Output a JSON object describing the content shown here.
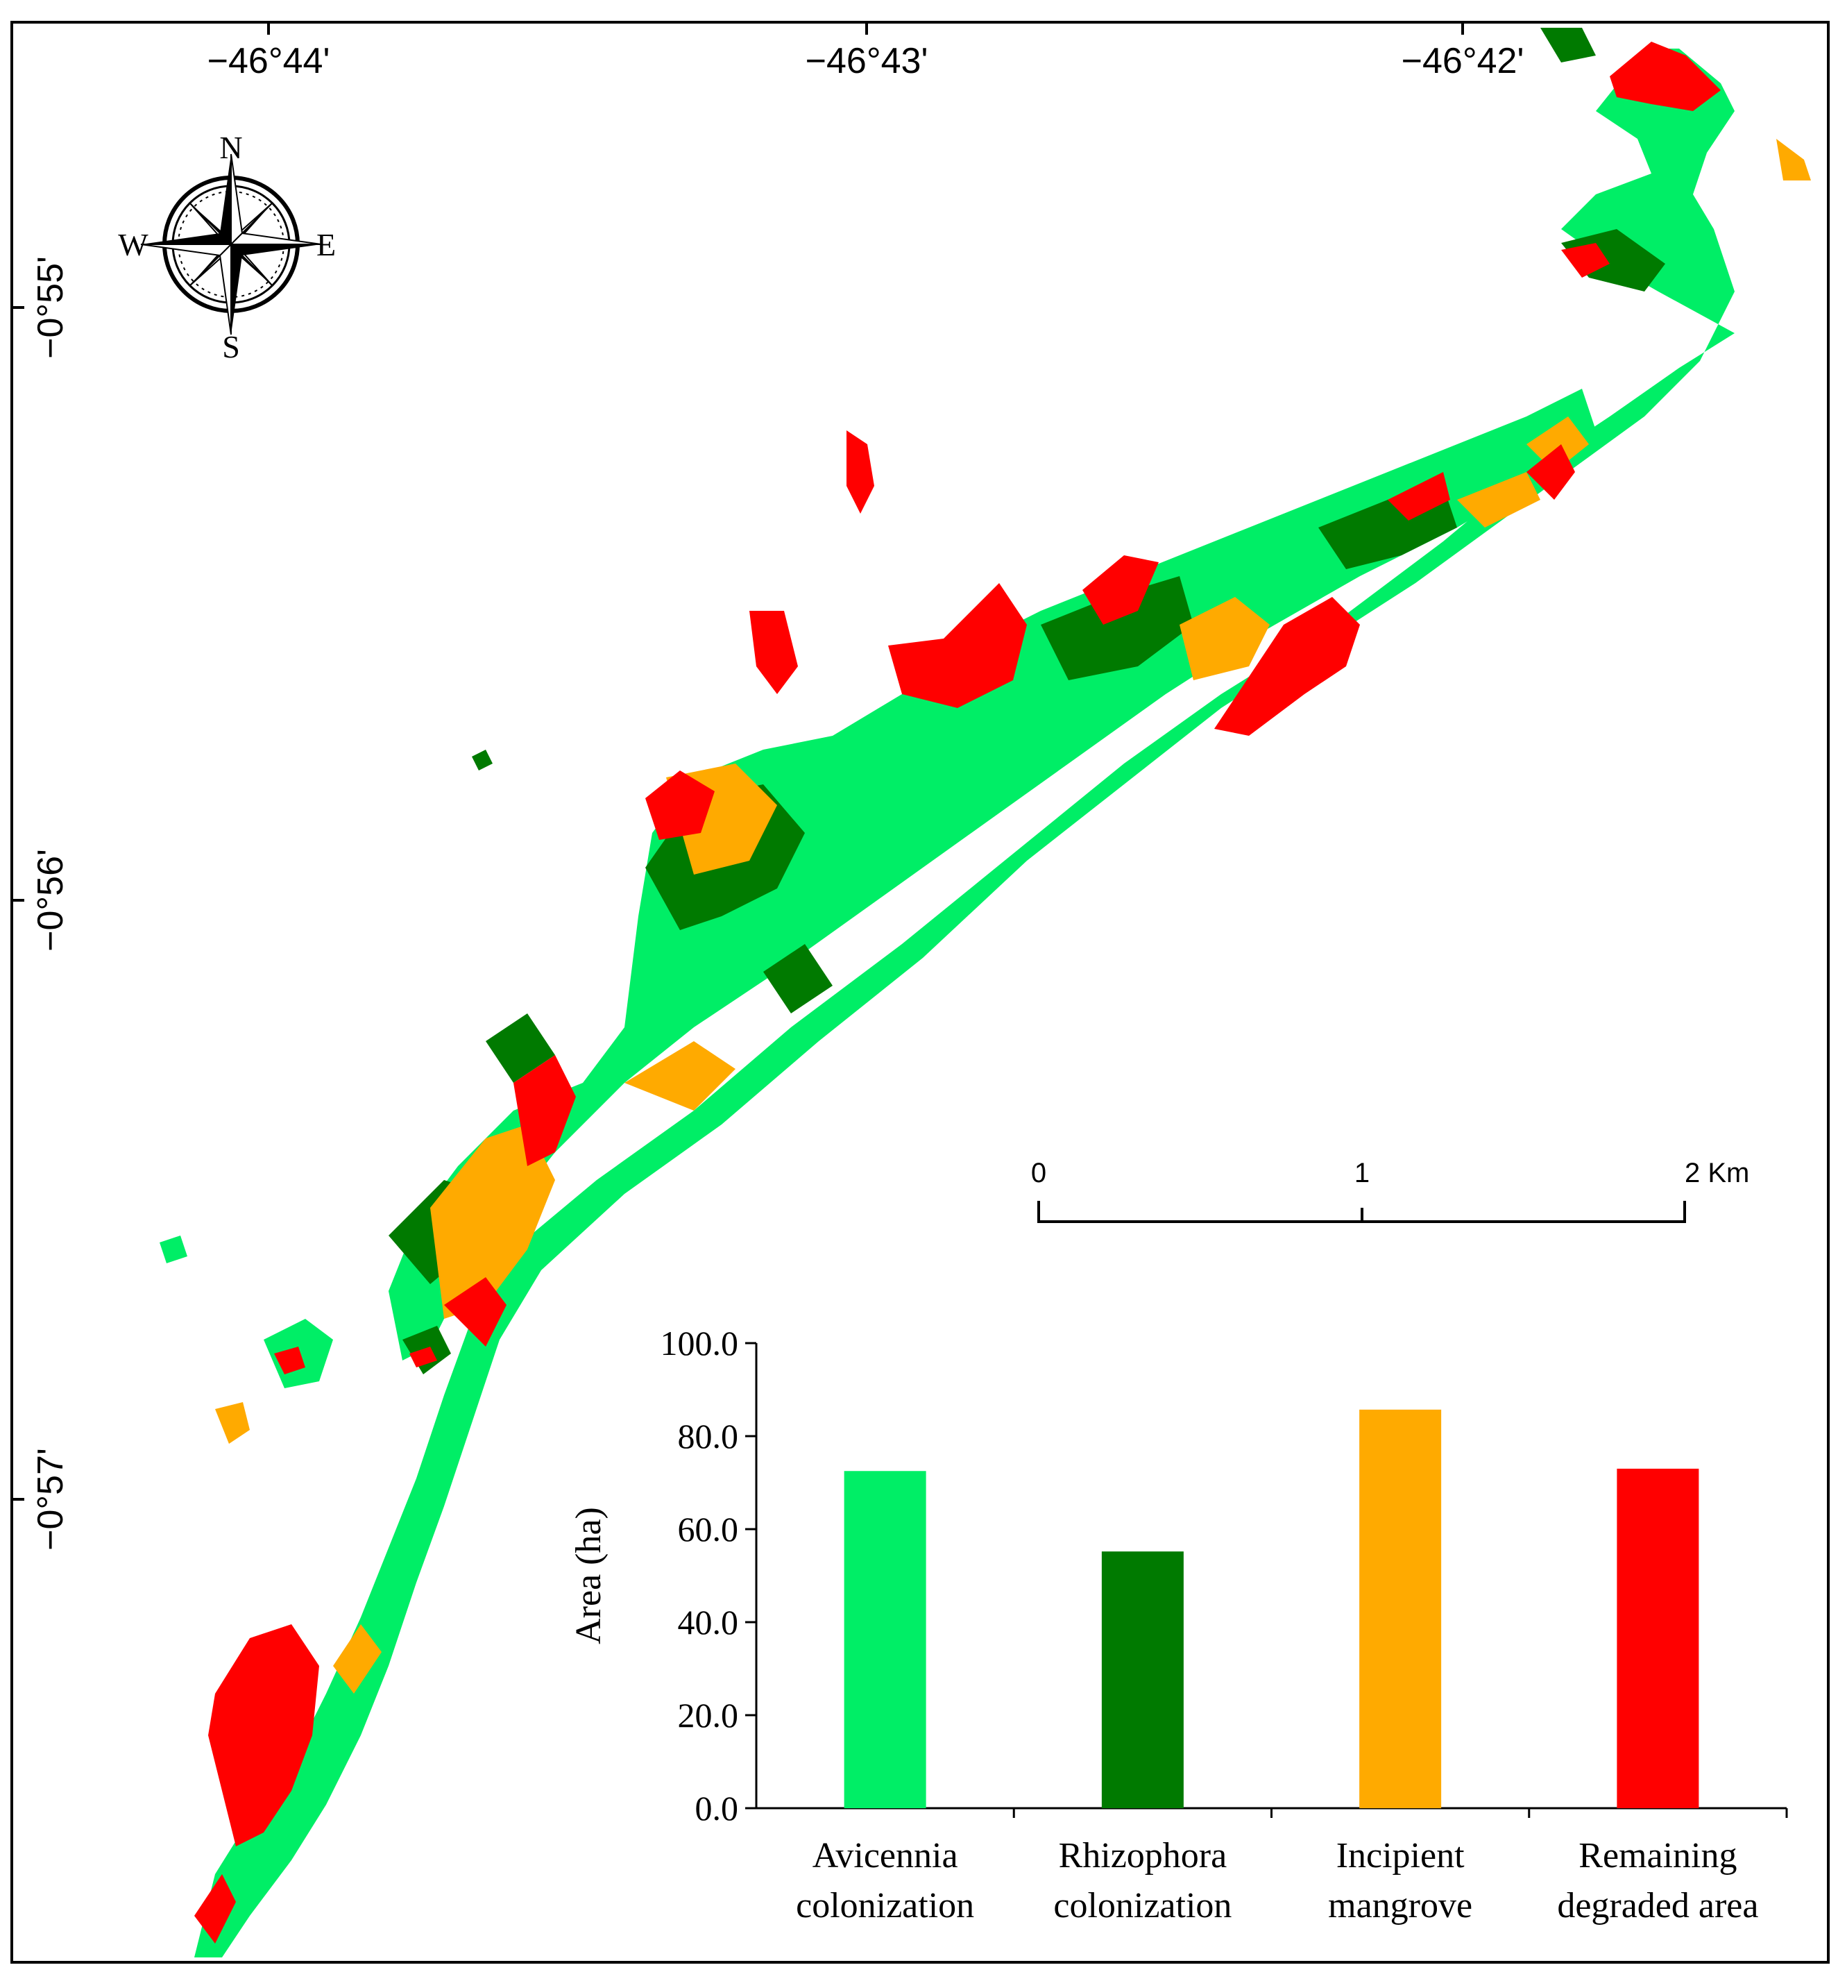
{
  "map": {
    "lon_labels": [
      "−46°44'",
      "−46°43'",
      "−46°42'"
    ],
    "lat_labels": [
      "−0°55'",
      "−0°56'",
      "−0°57'"
    ],
    "compass": {
      "n": "N",
      "s": "S",
      "e": "E",
      "w": "W"
    },
    "scale_bar": {
      "labels": [
        "0",
        "1",
        "2 Km"
      ]
    },
    "colors": {
      "avicennia": "#00ee66",
      "rhizophora": "#007a00",
      "incipient": "#ffaa00",
      "degraded": "#ff0000"
    }
  },
  "chart_data": {
    "type": "bar",
    "categories": [
      "Avicennia colonization",
      "Rhizophora colonization",
      "Incipient mangrove",
      "Remaining degraded area"
    ],
    "category_lines": [
      [
        "Avicennia",
        "colonization"
      ],
      [
        "Rhizophora",
        "colonization"
      ],
      [
        "Incipient",
        "mangrove"
      ],
      [
        "Remaining",
        "degraded area"
      ]
    ],
    "values": [
      72.5,
      55.2,
      85.7,
      73.0
    ],
    "colors": [
      "#00ee66",
      "#007a00",
      "#ffaa00",
      "#ff0000"
    ],
    "ylabel": "Area (ha)",
    "ylim": [
      0,
      100
    ],
    "yticks": [
      "0.0",
      "20.0",
      "40.0",
      "60.0",
      "80.0",
      "100.0"
    ],
    "grid": false
  }
}
